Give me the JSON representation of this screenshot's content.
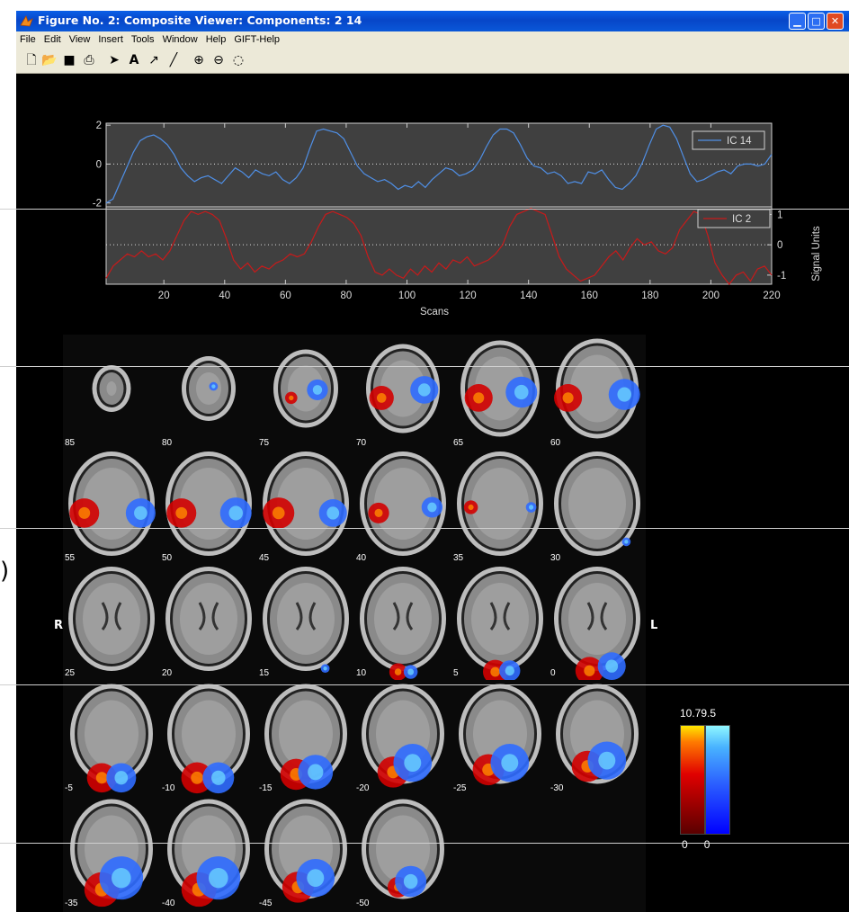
{
  "window": {
    "title": "Figure No. 2: Composite Viewer: Components:  2 14",
    "controls": [
      "minimize",
      "maximize",
      "close"
    ]
  },
  "menu": [
    "File",
    "Edit",
    "View",
    "Insert",
    "Tools",
    "Window",
    "Help",
    "GIFT-Help"
  ],
  "toolbar": [
    "new-icon",
    "open-icon",
    "save-icon",
    "print-icon",
    "arrow-icon",
    "text-icon",
    "arrow-line-icon",
    "line-icon",
    "zoom-in-icon",
    "zoom-out-icon",
    "rotate-icon"
  ],
  "chart_data": {
    "type": "line",
    "xlabel": "Scans",
    "ylabel_right": "Signal Units",
    "xticks": [
      "20",
      "40",
      "60",
      "80",
      "100",
      "120",
      "140",
      "160",
      "180",
      "200",
      "220"
    ],
    "x_range": [
      1,
      220
    ],
    "series": [
      {
        "name": "IC 14",
        "color": "#4f8fe6",
        "yticks": [
          "2",
          "0",
          "-2"
        ],
        "ylim": [
          -2.2,
          2.1
        ],
        "values": [
          -2,
          -1.8,
          -1,
          -0.2,
          0.6,
          1.2,
          1.4,
          1.5,
          1.3,
          1.0,
          0.5,
          -0.2,
          -0.6,
          -0.9,
          -0.7,
          -0.6,
          -0.8,
          -1.0,
          -0.6,
          -0.2,
          -0.4,
          -0.7,
          -0.3,
          -0.5,
          -0.6,
          -0.4,
          -0.8,
          -1.0,
          -0.7,
          -0.2,
          0.8,
          1.7,
          1.8,
          1.7,
          1.6,
          1.3,
          0.6,
          -0.1,
          -0.5,
          -0.7,
          -0.9,
          -0.8,
          -1.0,
          -1.3,
          -1.1,
          -1.2,
          -0.9,
          -1.2,
          -0.8,
          -0.5,
          -0.2,
          -0.3,
          -0.6,
          -0.5,
          -0.3,
          0.2,
          0.9,
          1.5,
          1.8,
          1.8,
          1.6,
          1.0,
          0.3,
          -0.1,
          -0.2,
          -0.5,
          -0.4,
          -0.6,
          -1.0,
          -0.9,
          -1.0,
          -0.4,
          -0.5,
          -0.3,
          -0.8,
          -1.2,
          -1.3,
          -1.0,
          -0.6,
          0.1,
          1.0,
          1.8,
          2.0,
          1.9,
          1.3,
          0.4,
          -0.5,
          -0.9,
          -0.8,
          -0.6,
          -0.4,
          -0.3,
          -0.5,
          -0.1,
          0,
          0,
          -0.1,
          0,
          0.5
        ]
      },
      {
        "name": "IC 2",
        "color": "#c81a1a",
        "yticks": [
          "1",
          "0",
          "-1"
        ],
        "ylim": [
          -1.3,
          1.25
        ],
        "values": [
          -1.1,
          -0.7,
          -0.5,
          -0.3,
          -0.4,
          -0.2,
          -0.4,
          -0.3,
          -0.5,
          -0.2,
          0.3,
          0.8,
          1.1,
          1.0,
          1.1,
          1.0,
          0.8,
          0.2,
          -0.5,
          -0.8,
          -0.6,
          -0.9,
          -0.7,
          -0.8,
          -0.6,
          -0.5,
          -0.3,
          -0.4,
          -0.3,
          0.1,
          0.6,
          1.0,
          1.1,
          1.0,
          0.9,
          0.7,
          0.3,
          -0.4,
          -0.9,
          -1.0,
          -0.8,
          -1.0,
          -1.1,
          -0.8,
          -1.0,
          -0.7,
          -0.9,
          -0.6,
          -0.8,
          -0.5,
          -0.6,
          -0.4,
          -0.7,
          -0.6,
          -0.5,
          -0.3,
          0,
          0.6,
          1.0,
          1.1,
          1.2,
          1.1,
          1.0,
          0.3,
          -0.4,
          -0.8,
          -1.0,
          -1.2,
          -1.1,
          -1.0,
          -0.7,
          -0.4,
          -0.2,
          -0.5,
          -0.1,
          0.2,
          0,
          0.1,
          -0.2,
          -0.3,
          -0.1,
          0.5,
          0.8,
          1.1,
          1.0,
          0.3,
          -0.6,
          -1.0,
          -1.3,
          -1.0,
          -0.9,
          -1.2,
          -0.8,
          -0.7,
          -1.0
        ]
      }
    ],
    "grid": false,
    "legend": "top-right"
  },
  "slices": {
    "side_left": "R",
    "side_right": "L",
    "labels": [
      "85",
      "80",
      "75",
      "70",
      "65",
      "60",
      "55",
      "50",
      "45",
      "40",
      "35",
      "30",
      "25",
      "20",
      "15",
      "10",
      "5",
      "0",
      "-5",
      "-10",
      "-15",
      "-20",
      "-25",
      "-30",
      "-35",
      "-40",
      "-45",
      "-50"
    ]
  },
  "colorbar": {
    "max_warm": "10.7",
    "max_cool": "9.5",
    "min_warm": "0",
    "min_cool": "0"
  }
}
